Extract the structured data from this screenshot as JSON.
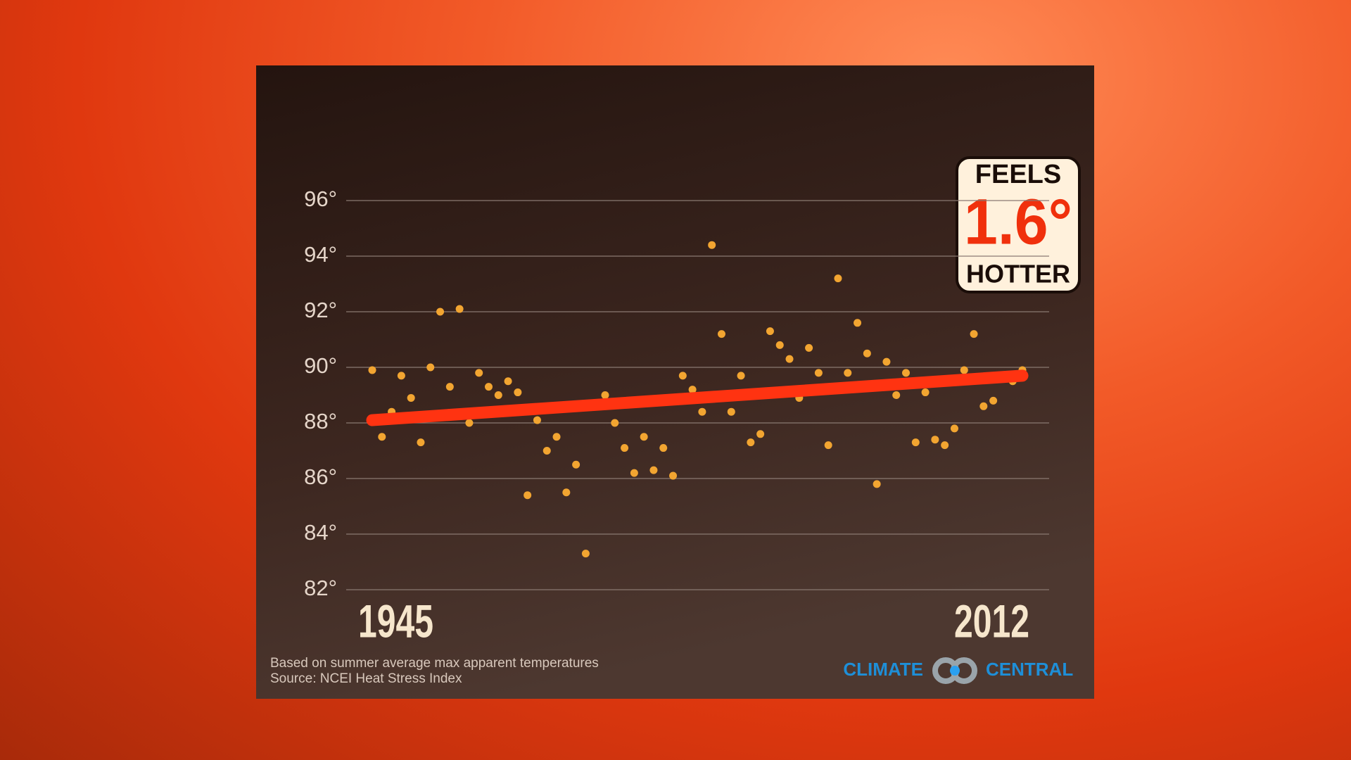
{
  "chart_data": {
    "type": "scatter",
    "xlim": [
      1945,
      2012
    ],
    "xticks": [
      1945,
      2012
    ],
    "ylim": [
      82,
      96
    ],
    "yticks": [
      {
        "value": 82,
        "label": "82°"
      },
      {
        "value": 84,
        "label": "84°"
      },
      {
        "value": 86,
        "label": "86°"
      },
      {
        "value": 88,
        "label": "88°"
      },
      {
        "value": 90,
        "label": "90°"
      },
      {
        "value": 92,
        "label": "92°"
      },
      {
        "value": 94,
        "label": "94°"
      },
      {
        "value": 96,
        "label": "96°"
      }
    ],
    "grid": true,
    "series": [
      {
        "color": "#f2a531",
        "x": [
          1945,
          1946,
          1947,
          1948,
          1949,
          1950,
          1951,
          1952,
          1953,
          1954,
          1955,
          1956,
          1957,
          1958,
          1959,
          1960,
          1961,
          1962,
          1963,
          1964,
          1965,
          1966,
          1967,
          1968,
          1969,
          1970,
          1971,
          1972,
          1973,
          1974,
          1975,
          1976,
          1977,
          1978,
          1979,
          1980,
          1981,
          1982,
          1983,
          1984,
          1985,
          1986,
          1987,
          1988,
          1989,
          1990,
          1991,
          1992,
          1993,
          1994,
          1995,
          1996,
          1997,
          1998,
          1999,
          2000,
          2001,
          2002,
          2003,
          2004,
          2005,
          2006,
          2007,
          2008,
          2009,
          2010,
          2011,
          2012
        ],
        "values": [
          89.9,
          87.5,
          88.4,
          89.7,
          88.9,
          87.3,
          90.0,
          92.0,
          89.3,
          92.1,
          88.0,
          89.8,
          89.3,
          89.0,
          89.5,
          89.1,
          85.4,
          88.1,
          87.0,
          87.5,
          85.5,
          86.5,
          83.3,
          88.6,
          89.0,
          88.0,
          87.1,
          86.2,
          87.5,
          86.3,
          87.1,
          86.1,
          89.7,
          89.2,
          88.4,
          94.4,
          91.2,
          88.4,
          89.7,
          87.3,
          87.6,
          91.3,
          90.8,
          90.3,
          88.9,
          90.7,
          89.8,
          87.2,
          93.2,
          89.8,
          91.6,
          90.5,
          85.8,
          90.2,
          89.0,
          89.8,
          87.3,
          89.1,
          87.4,
          87.2,
          87.8,
          89.9,
          91.2,
          88.6,
          88.8,
          89.6,
          89.5,
          89.9
        ]
      },
      {
        "type": "line",
        "color": "#ff3311",
        "x": [
          1945,
          2012
        ],
        "values": [
          88.1,
          89.7
        ]
      }
    ],
    "badge": {
      "top": "FEELS",
      "value": "1.6°",
      "bottom": "HOTTER"
    },
    "notes": [
      "Based on summer average max apparent temperatures",
      "Source: NCEI  Heat Stress Index"
    ],
    "brand": [
      "CLIMATE",
      "CENTRAL"
    ]
  }
}
